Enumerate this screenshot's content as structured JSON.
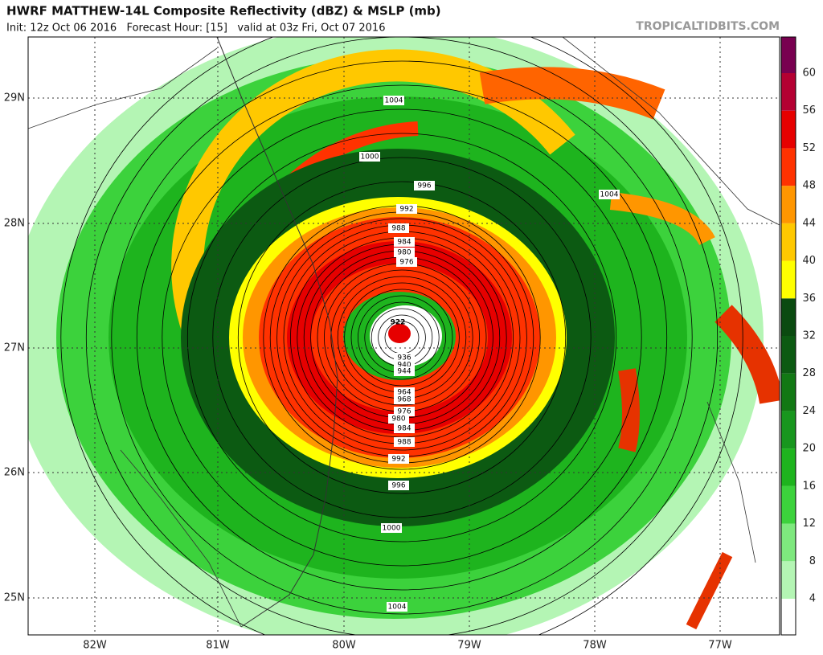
{
  "header": {
    "title": "HWRF MATTHEW-14L Composite Reflectivity (dBZ) & MSLP (mb)",
    "subtitle": "Init: 12z Oct 06 2016   Forecast Hour: [15]   valid at 03z Fri, Oct 07 2016",
    "watermark": "TROPICALTIDBITS.COM"
  },
  "map": {
    "lat_labels": [
      "29N",
      "28N",
      "27N",
      "26N",
      "25N"
    ],
    "lon_labels": [
      "82W",
      "81W",
      "80W",
      "79W",
      "78W",
      "77W"
    ],
    "isobar_labels": [
      "1004",
      "1000",
      "996",
      "992",
      "988",
      "984",
      "980",
      "976",
      "922",
      "936",
      "940",
      "944",
      "964",
      "968",
      "976",
      "980",
      "984",
      "988",
      "992",
      "996",
      "1000",
      "1004",
      "1004"
    ]
  },
  "colorbar": {
    "ticks": [
      4,
      8,
      12,
      16,
      20,
      24,
      28,
      32,
      36,
      40,
      44,
      48,
      52,
      56,
      60
    ]
  }
}
